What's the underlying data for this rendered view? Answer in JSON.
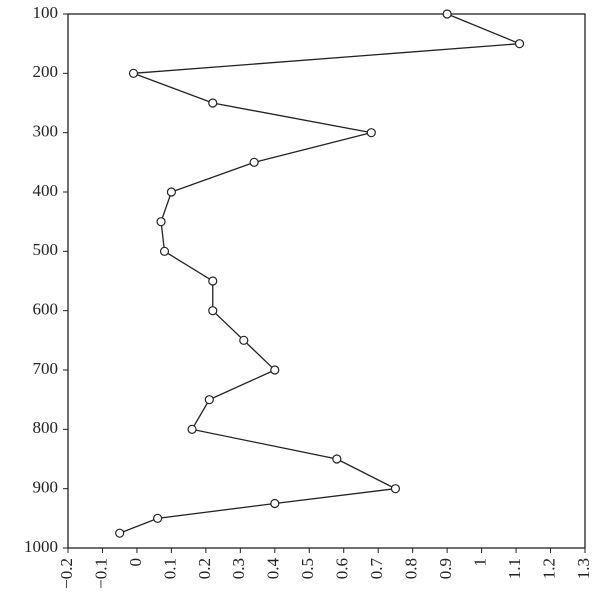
{
  "chart_data": {
    "type": "line",
    "y": [
      100,
      150,
      200,
      250,
      300,
      350,
      400,
      450,
      500,
      550,
      600,
      650,
      700,
      750,
      800,
      850,
      900,
      925,
      950,
      975
    ],
    "series": [
      {
        "color": "#222222",
        "values": [
          0.9,
          1.11,
          -0.01,
          0.22,
          0.68,
          0.34,
          0.1,
          0.07,
          0.08,
          0.22,
          0.22,
          0.31,
          0.4,
          0.21,
          0.16,
          0.58,
          0.75,
          0.4,
          0.06,
          -0.05
        ]
      }
    ],
    "xlim": [
      -0.2,
      1.3
    ],
    "xticks": [
      {
        "value": -0.2,
        "label": "−0.2"
      },
      {
        "value": -0.1,
        "label": "−0.1"
      },
      0,
      0.1,
      0.2,
      0.3,
      0.4,
      0.5,
      0.6,
      0.7,
      0.8,
      0.9,
      1,
      1.1,
      1.2,
      1.3
    ],
    "ylim": [
      100,
      1000
    ],
    "yticks": [
      100,
      200,
      300,
      400,
      500,
      600,
      700,
      800,
      900,
      1000
    ],
    "y_inverted": true,
    "grid": false
  }
}
